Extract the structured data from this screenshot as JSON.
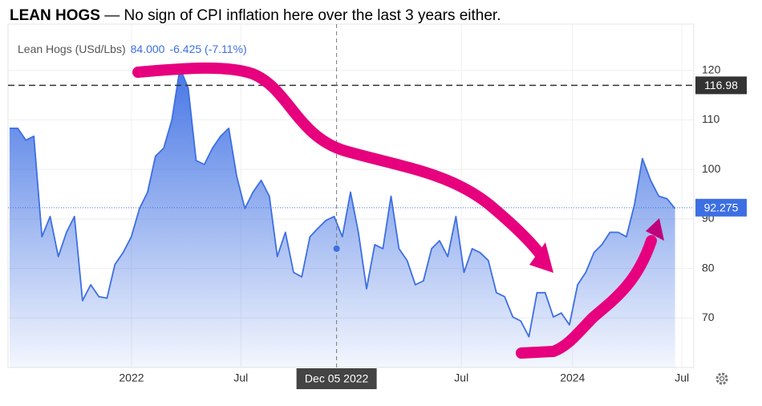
{
  "title": {
    "bold": "LEAN HOGS",
    "rest": " — No sign of CPI inflation here over the last 3 years either."
  },
  "chart_data": {
    "type": "area",
    "legend": {
      "name": "Lean Hogs (USd/Lbs)",
      "value": "84.000",
      "change": "-6.425 (-7.11%)"
    },
    "x": [
      2021.447,
      2021.484,
      2021.521,
      2021.557,
      2021.594,
      2021.631,
      2021.668,
      2021.705,
      2021.741,
      2021.778,
      2021.815,
      2021.852,
      2021.889,
      2021.925,
      2021.962,
      2021.999,
      2022.036,
      2022.073,
      2022.109,
      2022.146,
      2022.183,
      2022.22,
      2022.257,
      2022.293,
      2022.33,
      2022.367,
      2022.404,
      2022.441,
      2022.477,
      2022.514,
      2022.551,
      2022.588,
      2022.625,
      2022.661,
      2022.698,
      2022.735,
      2022.772,
      2022.809,
      2022.845,
      2022.882,
      2022.919,
      2022.956,
      2022.993,
      2023.029,
      2023.066,
      2023.103,
      2023.14,
      2023.177,
      2023.213,
      2023.25,
      2023.287,
      2023.324,
      2023.361,
      2023.397,
      2023.434,
      2023.471,
      2023.508,
      2023.545,
      2023.581,
      2023.618,
      2023.655,
      2023.692,
      2023.729,
      2023.765,
      2023.802,
      2023.839,
      2023.876,
      2023.913,
      2023.949,
      2023.986,
      2024.023,
      2024.06,
      2024.097,
      2024.133,
      2024.17,
      2024.207,
      2024.244,
      2024.281,
      2024.317,
      2024.354,
      2024.391,
      2024.428,
      2024.465
    ],
    "series": [
      {
        "name": "Lean Hogs (USd/Lbs)",
        "color": "#3d6fe3",
        "values": [
          108.3,
          108.3,
          105.9,
          106.7,
          86.4,
          90.5,
          82.4,
          87.3,
          90.5,
          73.5,
          76.7,
          74.3,
          74.0,
          80.8,
          83.2,
          86.4,
          92.1,
          95.4,
          102.7,
          104.3,
          110.0,
          120.5,
          116.4,
          101.8,
          101.0,
          104.3,
          106.7,
          108.3,
          98.6,
          92.1,
          95.4,
          97.8,
          94.6,
          82.4,
          87.3,
          79.2,
          78.3,
          86.4,
          88.1,
          89.7,
          90.5,
          86.4,
          95.4,
          87.3,
          75.9,
          84.8,
          84.0,
          94.6,
          84.0,
          81.6,
          76.7,
          77.5,
          84.0,
          85.6,
          82.4,
          90.5,
          79.2,
          84.0,
          83.2,
          81.6,
          75.1,
          74.3,
          70.2,
          69.4,
          66.2,
          75.1,
          75.1,
          70.2,
          71.0,
          68.6,
          76.7,
          79.2,
          83.2,
          84.8,
          87.3,
          87.3,
          86.4,
          92.9,
          102.2,
          97.8,
          94.6,
          94.1,
          92.1
        ]
      }
    ],
    "xlim": [
      2021.44,
      2024.55
    ],
    "ylim": [
      60,
      130
    ],
    "yticks": [
      70,
      80,
      90,
      100,
      110,
      120
    ],
    "xticks": [
      2022,
      {
        "value": 2022.496,
        "label": "Jul"
      },
      {
        "value": 2023.496,
        "label": "Jul"
      },
      2024,
      {
        "value": 2024.496,
        "label": "Jul"
      }
    ],
    "price_lines": [
      {
        "value": 116.98,
        "color": "#333333"
      },
      {
        "value": 92.275,
        "color": "#3d6fe3"
      }
    ],
    "crosshair": {
      "x": 2022.93,
      "x_label": "Dec 05 2022",
      "y": 84
    }
  }
}
